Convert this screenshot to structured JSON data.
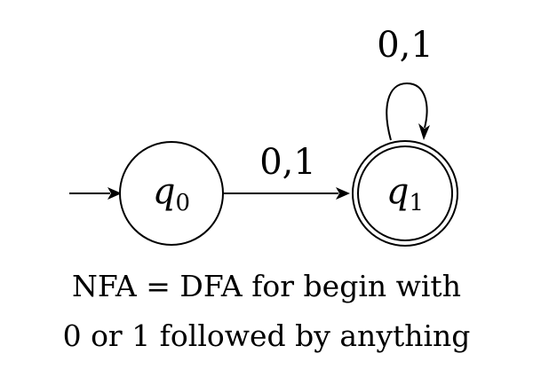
{
  "diagram": {
    "type": "finite-automaton",
    "states": [
      {
        "id": "q0",
        "symbol": "q",
        "subscript": "0",
        "initial": true,
        "accepting": false
      },
      {
        "id": "q1",
        "symbol": "q",
        "subscript": "1",
        "initial": false,
        "accepting": true
      }
    ],
    "transitions": [
      {
        "from": "q0",
        "to": "q1",
        "label": "0,1"
      },
      {
        "from": "q1",
        "to": "q1",
        "label": "0,1"
      }
    ],
    "caption": {
      "line1": "NFA = DFA for begin with",
      "line2": "0 or 1 followed by anything"
    }
  }
}
